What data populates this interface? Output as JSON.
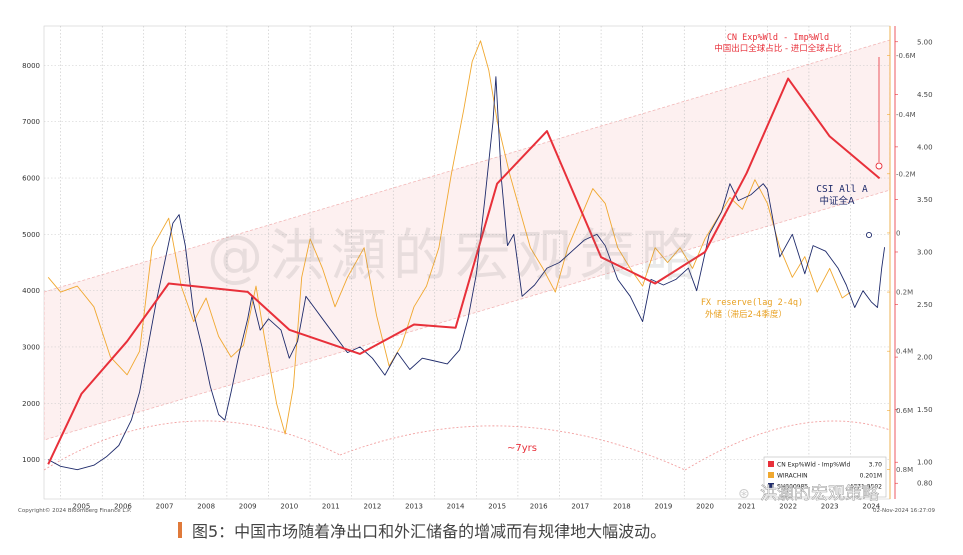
{
  "caption": "图5：中国市场随着净出口和外汇储备的增减而有规律地大幅波动。",
  "watermark_center": "@洪灝的宏观策略",
  "watermark_corner": "洪灝的宏观策略",
  "copyright": "Copyright© 2024 Bloomberg Finance L.P.",
  "date_stamp": "02-Nov-2024 16:27:09",
  "annotations": {
    "cn_label_en": "CN Exp%Wld - Imp%Wld",
    "cn_label_zh": "中国出口全球占比 - 进口全球占比",
    "csi_label_en": "CSI All A",
    "csi_label_zh": "中证全A",
    "fx_label_en": "FX reserve(lag 2-4q)",
    "fx_label_zh": "外储（滞后2-4季度）",
    "cycle_label": "~7yrs"
  },
  "legend": [
    {
      "label": "CN Exp%Wld - Imp%Wld",
      "value": "3.70",
      "color": "#e8303a"
    },
    {
      "label": "WIRACHIN",
      "value": "0.201M",
      "color": "#f0a830"
    },
    {
      "label": "SH000985",
      "value": "4771.9502",
      "color": "#1f2b6b"
    }
  ],
  "chart_data": {
    "type": "line",
    "x_ticks": [
      "2005",
      "2006",
      "2007",
      "2008",
      "2009",
      "2010",
      "2011",
      "2012",
      "2013",
      "2014",
      "2015",
      "2016",
      "2017",
      "2018",
      "2019",
      "2020",
      "2021",
      "2022",
      "2023",
      "2024"
    ],
    "left_axis": {
      "ticks": [
        "1000",
        "2000",
        "3000",
        "4000",
        "5000",
        "6000",
        "7000",
        "8000"
      ],
      "range": [
        300,
        8700
      ]
    },
    "right_axis_trade": {
      "ticks": [
        "0.80",
        "1.00",
        "1.50",
        "2.00",
        "2.50",
        "3.00",
        "3.50",
        "4.00",
        "4.50",
        "5.00"
      ],
      "range": [
        0.65,
        5.15
      ]
    },
    "right_axis_fx": {
      "ticks": [
        "0.8M",
        "0.6M",
        "0.4M",
        "0.2M",
        "0",
        "-0.2M",
        "-0.4M",
        "-0.6M"
      ],
      "range": [
        0.9,
        -0.7
      ],
      "inverted": true
    },
    "series": [
      {
        "name": "CN Exp%Wld - Imp%Wld",
        "axis": "trade",
        "color": "#e8303a",
        "points": [
          [
            2004.7,
            0.98
          ],
          [
            2005.5,
            1.65
          ],
          [
            2006.6,
            2.15
          ],
          [
            2007.6,
            2.7
          ],
          [
            2009.5,
            2.62
          ],
          [
            2010.5,
            2.26
          ],
          [
            2012.2,
            2.03
          ],
          [
            2013.5,
            2.31
          ],
          [
            2014.5,
            2.28
          ],
          [
            2015.5,
            3.65
          ],
          [
            2016.7,
            4.15
          ],
          [
            2018.0,
            2.95
          ],
          [
            2019.3,
            2.7
          ],
          [
            2020.5,
            3.0
          ],
          [
            2021.5,
            3.75
          ],
          [
            2022.5,
            4.65
          ],
          [
            2023.5,
            4.1
          ],
          [
            2024.7,
            3.7
          ]
        ]
      },
      {
        "name": "WIRACHIN",
        "axis": "fx",
        "color": "#f0a830",
        "points": [
          [
            2004.7,
            0.15
          ],
          [
            2005.0,
            0.2
          ],
          [
            2005.4,
            0.18
          ],
          [
            2005.8,
            0.25
          ],
          [
            2006.2,
            0.42
          ],
          [
            2006.6,
            0.48
          ],
          [
            2006.9,
            0.4
          ],
          [
            2007.2,
            0.05
          ],
          [
            2007.6,
            -0.05
          ],
          [
            2007.9,
            0.18
          ],
          [
            2008.2,
            0.3
          ],
          [
            2008.5,
            0.22
          ],
          [
            2008.8,
            0.35
          ],
          [
            2009.1,
            0.42
          ],
          [
            2009.4,
            0.38
          ],
          [
            2009.7,
            0.18
          ],
          [
            2009.9,
            0.35
          ],
          [
            2010.2,
            0.58
          ],
          [
            2010.4,
            0.68
          ],
          [
            2010.6,
            0.52
          ],
          [
            2010.8,
            0.15
          ],
          [
            2011.0,
            0.02
          ],
          [
            2011.3,
            0.12
          ],
          [
            2011.6,
            0.25
          ],
          [
            2011.9,
            0.15
          ],
          [
            2012.3,
            0.05
          ],
          [
            2012.6,
            0.28
          ],
          [
            2012.9,
            0.45
          ],
          [
            2013.2,
            0.38
          ],
          [
            2013.5,
            0.25
          ],
          [
            2013.8,
            0.18
          ],
          [
            2014.1,
            0.05
          ],
          [
            2014.4,
            -0.2
          ],
          [
            2014.7,
            -0.42
          ],
          [
            2014.9,
            -0.58
          ],
          [
            2015.1,
            -0.65
          ],
          [
            2015.3,
            -0.55
          ],
          [
            2015.5,
            -0.38
          ],
          [
            2015.8,
            -0.2
          ],
          [
            2016.0,
            -0.1
          ],
          [
            2016.3,
            0.05
          ],
          [
            2016.6,
            0.12
          ],
          [
            2016.9,
            0.2
          ],
          [
            2017.2,
            0.05
          ],
          [
            2017.5,
            -0.05
          ],
          [
            2017.8,
            -0.15
          ],
          [
            2018.1,
            -0.1
          ],
          [
            2018.4,
            0.05
          ],
          [
            2018.7,
            0.12
          ],
          [
            2019.0,
            0.18
          ],
          [
            2019.3,
            0.05
          ],
          [
            2019.6,
            0.1
          ],
          [
            2019.9,
            0.05
          ],
          [
            2020.2,
            0.12
          ],
          [
            2020.5,
            0.02
          ],
          [
            2020.8,
            -0.05
          ],
          [
            2021.1,
            -0.12
          ],
          [
            2021.4,
            -0.08
          ],
          [
            2021.7,
            -0.18
          ],
          [
            2022.0,
            -0.1
          ],
          [
            2022.3,
            0.05
          ],
          [
            2022.6,
            0.15
          ],
          [
            2022.9,
            0.08
          ],
          [
            2023.2,
            0.2
          ],
          [
            2023.5,
            0.12
          ],
          [
            2023.8,
            0.22
          ],
          [
            2024.0,
            0.2
          ]
        ]
      },
      {
        "name": "SH000985",
        "axis": "left",
        "color": "#1f2b6b",
        "points": [
          [
            2004.7,
            1000
          ],
          [
            2005.0,
            880
          ],
          [
            2005.4,
            820
          ],
          [
            2005.8,
            900
          ],
          [
            2006.1,
            1050
          ],
          [
            2006.4,
            1250
          ],
          [
            2006.7,
            1700
          ],
          [
            2006.9,
            2200
          ],
          [
            2007.1,
            3000
          ],
          [
            2007.3,
            3800
          ],
          [
            2007.5,
            4500
          ],
          [
            2007.7,
            5200
          ],
          [
            2007.85,
            5350
          ],
          [
            2008.0,
            4800
          ],
          [
            2008.2,
            3600
          ],
          [
            2008.4,
            3000
          ],
          [
            2008.6,
            2300
          ],
          [
            2008.8,
            1800
          ],
          [
            2008.95,
            1700
          ],
          [
            2009.1,
            2200
          ],
          [
            2009.3,
            2900
          ],
          [
            2009.5,
            3500
          ],
          [
            2009.6,
            3900
          ],
          [
            2009.8,
            3300
          ],
          [
            2010.0,
            3500
          ],
          [
            2010.3,
            3300
          ],
          [
            2010.5,
            2800
          ],
          [
            2010.7,
            3100
          ],
          [
            2010.9,
            3900
          ],
          [
            2011.1,
            3700
          ],
          [
            2011.3,
            3500
          ],
          [
            2011.6,
            3200
          ],
          [
            2011.9,
            2900
          ],
          [
            2012.2,
            3000
          ],
          [
            2012.5,
            2800
          ],
          [
            2012.8,
            2500
          ],
          [
            2013.1,
            2900
          ],
          [
            2013.4,
            2600
          ],
          [
            2013.7,
            2800
          ],
          [
            2014.0,
            2750
          ],
          [
            2014.3,
            2700
          ],
          [
            2014.6,
            2950
          ],
          [
            2014.8,
            3500
          ],
          [
            2015.0,
            4300
          ],
          [
            2015.2,
            5600
          ],
          [
            2015.4,
            7000
          ],
          [
            2015.47,
            7800
          ],
          [
            2015.6,
            6000
          ],
          [
            2015.75,
            4800
          ],
          [
            2015.9,
            5000
          ],
          [
            2016.1,
            3900
          ],
          [
            2016.4,
            4100
          ],
          [
            2016.7,
            4400
          ],
          [
            2017.0,
            4500
          ],
          [
            2017.3,
            4700
          ],
          [
            2017.6,
            4900
          ],
          [
            2017.9,
            5000
          ],
          [
            2018.1,
            4800
          ],
          [
            2018.4,
            4200
          ],
          [
            2018.7,
            3900
          ],
          [
            2019.0,
            3450
          ],
          [
            2019.2,
            4200
          ],
          [
            2019.5,
            4100
          ],
          [
            2019.8,
            4200
          ],
          [
            2020.1,
            4400
          ],
          [
            2020.3,
            4000
          ],
          [
            2020.6,
            5000
          ],
          [
            2020.9,
            5400
          ],
          [
            2021.1,
            5900
          ],
          [
            2021.3,
            5600
          ],
          [
            2021.6,
            5700
          ],
          [
            2021.9,
            5900
          ],
          [
            2022.0,
            5800
          ],
          [
            2022.3,
            4600
          ],
          [
            2022.6,
            5000
          ],
          [
            2022.9,
            4300
          ],
          [
            2023.1,
            4800
          ],
          [
            2023.4,
            4700
          ],
          [
            2023.7,
            4400
          ],
          [
            2023.9,
            4100
          ],
          [
            2024.1,
            3700
          ],
          [
            2024.3,
            4000
          ],
          [
            2024.5,
            3800
          ],
          [
            2024.65,
            3700
          ],
          [
            2024.75,
            4400
          ],
          [
            2024.82,
            4772
          ]
        ]
      }
    ]
  }
}
